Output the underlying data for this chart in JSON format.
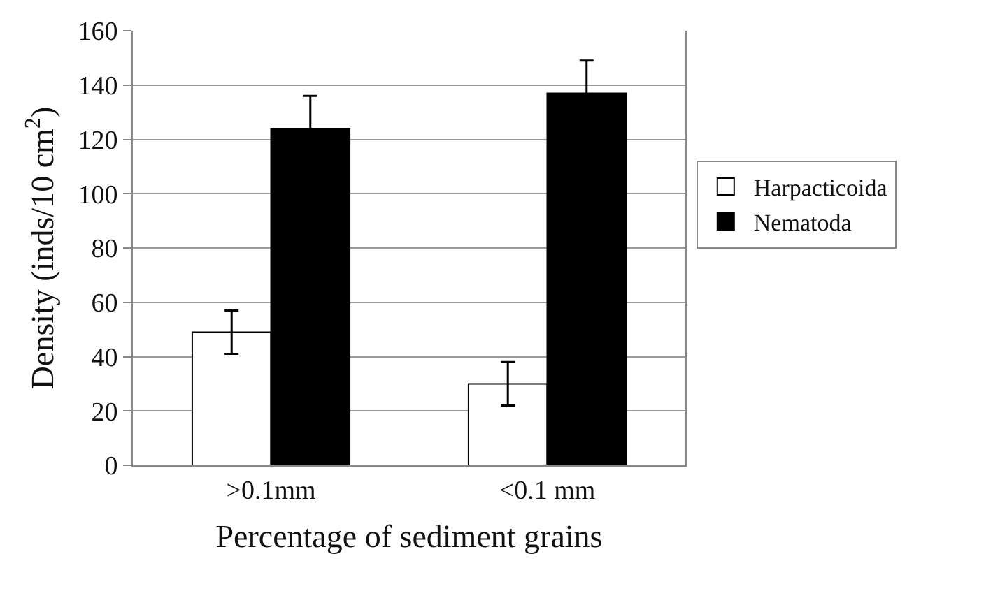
{
  "chart_data": {
    "type": "bar",
    "xlabel": "Percentage of sediment grains",
    "ylabel": "Density (inds/10 cm$^{2}$)",
    "categories": [
      ">0.1mm",
      "<0.1 mm"
    ],
    "series": [
      {
        "name": "Harpacticoida",
        "color": "#ffffff",
        "values": [
          49,
          30
        ],
        "errors": [
          8,
          8
        ]
      },
      {
        "name": "Nematoda",
        "color": "#000000",
        "values": [
          124,
          137
        ],
        "errors": [
          12,
          12
        ]
      }
    ],
    "ylim": [
      0,
      160
    ],
    "yticks": [
      0,
      20,
      40,
      60,
      80,
      100,
      120,
      140,
      160
    ],
    "grid": "y",
    "legend": "right"
  }
}
